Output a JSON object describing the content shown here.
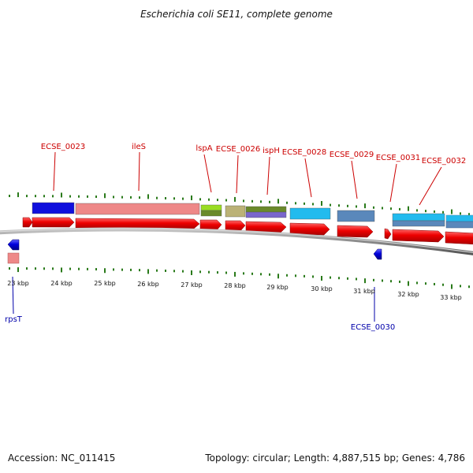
{
  "title": "Escherichia coli SE11, complete genome",
  "footer": {
    "accession": "Accession: NC_011415",
    "summary": "Topology: circular; Length: 4,887,515 bp; Genes: 4,786"
  },
  "colors": {
    "forward_label": "#cc0000",
    "reverse_label": "#0000aa",
    "tick": "#2a7a1a",
    "backbone": "#8a8a8a",
    "cds_forward": "#ee0000",
    "cds_reverse": "#0000dd"
  },
  "kbp_ticks": [
    "23 kbp",
    "24 kbp",
    "25 kbp",
    "26 kbp",
    "27 kbp",
    "28 kbp",
    "29 kbp",
    "30 kbp",
    "31 kbp",
    "32 kbp",
    "33 kbp"
  ],
  "forward_labels": [
    "ECSE_0023",
    "ileS",
    "lspA",
    "ECSE_0026",
    "ispH",
    "ECSE_0028",
    "ECSE_0029",
    "ECSE_0031",
    "ECSE_0032"
  ],
  "reverse_labels": [
    "rpsT",
    "ECSE_0030"
  ],
  "feature_colors": [
    "#1010dd",
    "#ee8888",
    "#99dd22",
    "#6a8a2a",
    "#bbb277",
    "#6a8a2a",
    "#7a66cc",
    "#22bbee",
    "#5a88bb",
    "#22bbee",
    "#5a88bb"
  ]
}
